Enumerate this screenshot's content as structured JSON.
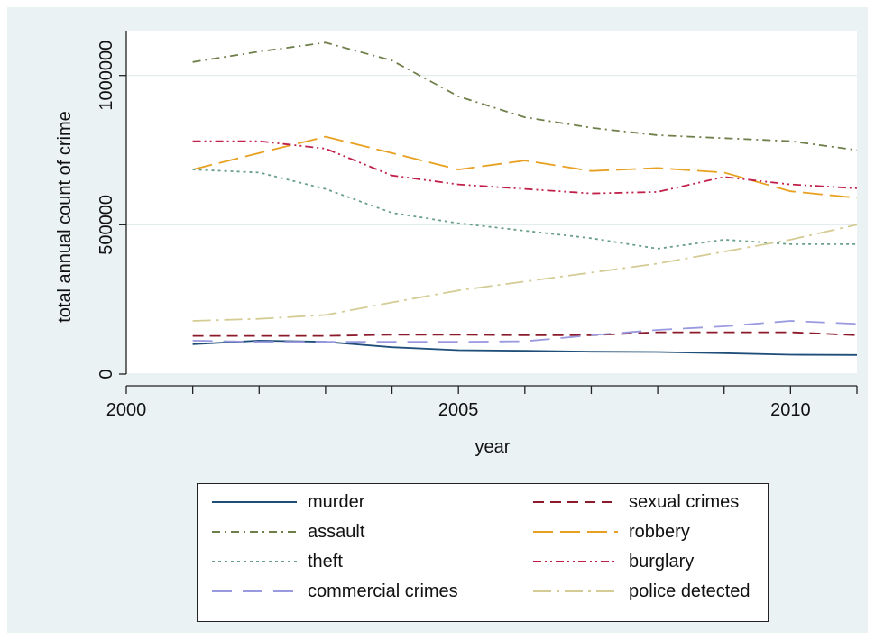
{
  "chart_data": {
    "type": "line",
    "title": "",
    "xlabel": "year",
    "ylabel": "total annual count of crime",
    "xlim": [
      2000,
      2011
    ],
    "ylim": [
      0,
      1150000
    ],
    "x_ticks": [
      2000,
      2005,
      2010
    ],
    "x_tick_labels": [
      "2000",
      "2005",
      "2010"
    ],
    "x_minor_ticks": [
      2001,
      2002,
      2003,
      2004,
      2006,
      2007,
      2008,
      2009,
      2011
    ],
    "y_ticks": [
      0,
      500000,
      1000000
    ],
    "y_tick_labels": [
      "0",
      "500000",
      "1000000"
    ],
    "grid": true,
    "legend_position": "bottom",
    "x": [
      2001,
      2002,
      2003,
      2004,
      2005,
      2006,
      2007,
      2008,
      2009,
      2010,
      2011
    ],
    "series": [
      {
        "name": "murder",
        "color": "#1f4e79",
        "dash": "solid",
        "values": [
          100000,
          112000,
          108000,
          90000,
          80000,
          78000,
          75000,
          74000,
          70000,
          65000,
          64000
        ]
      },
      {
        "name": "sexual crimes",
        "color": "#8b1a2b",
        "dash": "dash",
        "values": [
          128000,
          128000,
          128000,
          132000,
          132000,
          130000,
          130000,
          140000,
          140000,
          140000,
          130000
        ]
      },
      {
        "name": "assault",
        "color": "#6f7f4a",
        "dash": "dashdot",
        "values": [
          1045000,
          1080000,
          1110000,
          1050000,
          930000,
          860000,
          825000,
          800000,
          790000,
          780000,
          750000
        ]
      },
      {
        "name": "robbery",
        "color": "#e8a020",
        "dash": "longdash",
        "values": [
          685000,
          740000,
          795000,
          740000,
          685000,
          715000,
          680000,
          690000,
          675000,
          612000,
          590000
        ]
      },
      {
        "name": "theft",
        "color": "#6a9f8a",
        "dash": "dot",
        "values": [
          685000,
          675000,
          620000,
          540000,
          505000,
          480000,
          455000,
          420000,
          450000,
          435000,
          435000
        ]
      },
      {
        "name": "burglary",
        "color": "#c0204a",
        "dash": "dashdotdot",
        "values": [
          780000,
          780000,
          755000,
          665000,
          635000,
          620000,
          605000,
          610000,
          660000,
          635000,
          622000
        ]
      },
      {
        "name": "commercial crimes",
        "color": "#9a9ae0",
        "dash": "longgap",
        "values": [
          112000,
          108000,
          108000,
          108000,
          108000,
          110000,
          130000,
          148000,
          160000,
          178000,
          168000
        ]
      },
      {
        "name": "police detected",
        "color": "#d4cc94",
        "dash": "longdashdot",
        "values": [
          178000,
          185000,
          198000,
          240000,
          280000,
          310000,
          340000,
          370000,
          410000,
          450000,
          500000
        ]
      }
    ]
  }
}
